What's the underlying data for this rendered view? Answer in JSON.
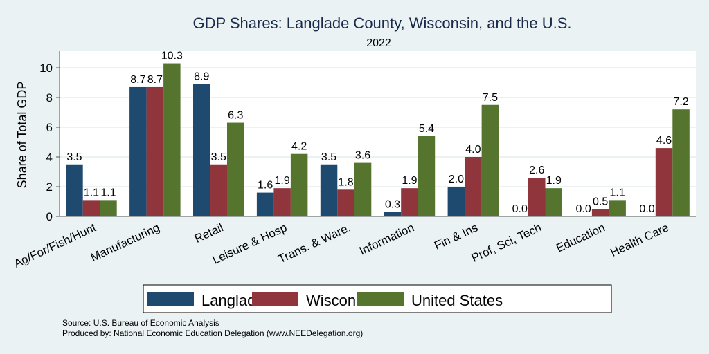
{
  "chart_data": {
    "type": "bar",
    "title": "GDP Shares: Langlade County, Wisconsin, and the U.S.",
    "subtitle": "2022",
    "xlabel": "",
    "ylabel": "Share of Total GDP",
    "ylim": [
      0,
      11
    ],
    "yticks": [
      0,
      2,
      4,
      6,
      8,
      10
    ],
    "grid": true,
    "legend_position": "bottom",
    "categories": [
      "Ag/For/Fish/Hunt",
      "Manufacturing",
      "Retail",
      "Leisure & Hosp",
      "Trans. & Ware.",
      "Information",
      "Fin & Ins",
      "Prof, Sci, Tech",
      "Education",
      "Health Care"
    ],
    "series": [
      {
        "name": "Langlade",
        "color": "#1f4a70",
        "values": [
          3.5,
          8.7,
          8.9,
          1.6,
          3.5,
          0.3,
          2.0,
          0.0,
          0.0,
          0.0
        ],
        "labels": [
          "3.5",
          "8.7",
          "8.9",
          "1.6",
          "3.5",
          "0.3",
          "2.0",
          "0.0",
          "0.0",
          "0.0"
        ]
      },
      {
        "name": "Wisconsin",
        "color": "#90353b",
        "values": [
          1.1,
          8.7,
          3.5,
          1.9,
          1.8,
          1.9,
          4.0,
          2.6,
          0.5,
          4.6
        ],
        "labels": [
          "1.1",
          "8.7",
          "3.5",
          "1.9",
          "1.8",
          "1.9",
          "4.0",
          "2.6",
          "0.5",
          "4.6"
        ]
      },
      {
        "name": "United States",
        "color": "#55752f",
        "values": [
          1.1,
          10.3,
          6.3,
          4.2,
          3.6,
          5.4,
          7.5,
          1.9,
          1.1,
          7.2
        ],
        "labels": [
          "1.1",
          "10.3",
          "6.3",
          "4.2",
          "3.6",
          "5.4",
          "7.5",
          "1.9",
          "1.1",
          "7.2"
        ]
      }
    ],
    "notes": [
      "Source: U.S. Bureau of Economic Analysis",
      "Produced by: National Economic Education Delegation (www.NEEDelegation.org)"
    ]
  }
}
